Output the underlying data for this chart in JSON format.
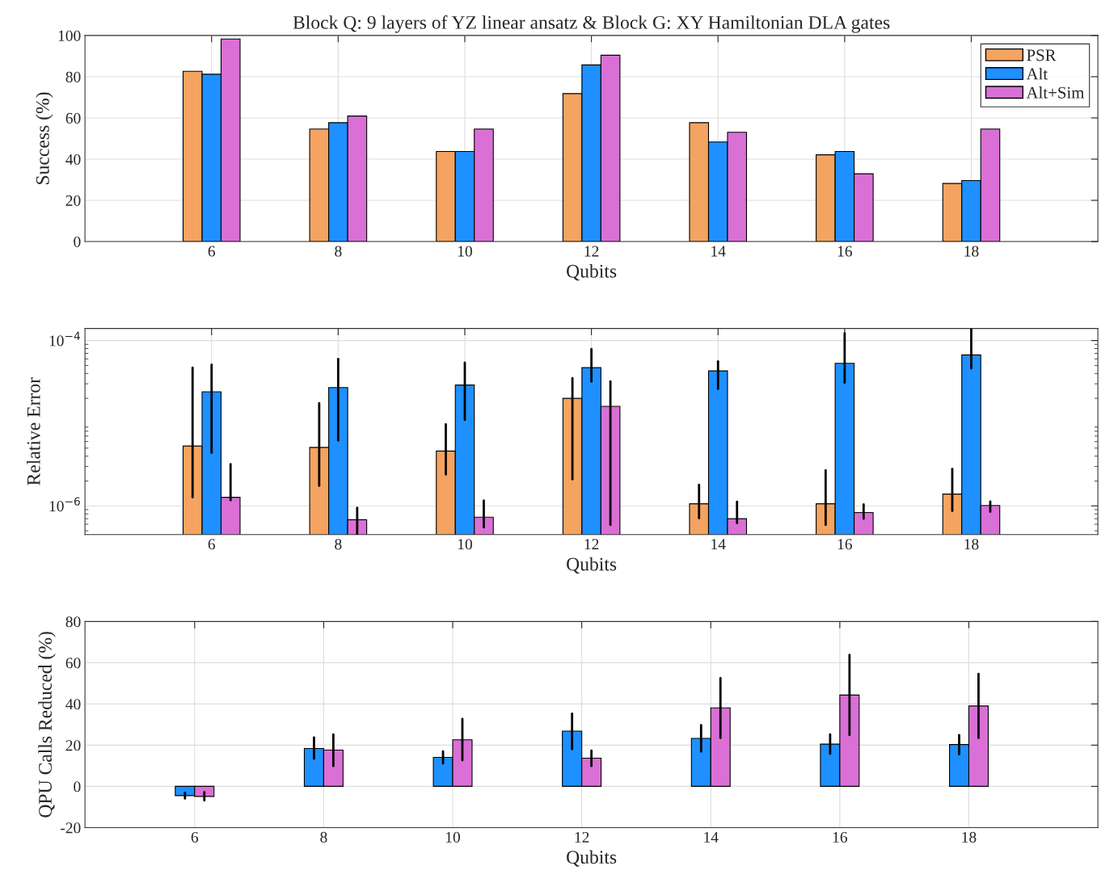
{
  "chart_data": [
    {
      "type": "bar",
      "title": "Block Q: 9 layers of YZ linear ansatz & Block G: XY Hamiltonian DLA gates",
      "xlabel": "Qubits",
      "ylabel": "Success (%)",
      "x": [
        6,
        8,
        10,
        12,
        14,
        16,
        18
      ],
      "xlim": [
        4,
        20
      ],
      "xticks": [
        6,
        8,
        10,
        12,
        14,
        16,
        18
      ],
      "ylim": [
        0,
        100
      ],
      "yticks": [
        0,
        20,
        40,
        60,
        80,
        100
      ],
      "grid": true,
      "legend": "top right",
      "series": [
        {
          "name": "PSR",
          "color": "#f4a460",
          "values": [
            82.6,
            54.6,
            43.7,
            71.8,
            57.7,
            42.1,
            28.2
          ]
        },
        {
          "name": "Alt",
          "color": "#1e90ff",
          "values": [
            81.2,
            57.7,
            43.7,
            85.7,
            48.3,
            43.7,
            29.6
          ]
        },
        {
          "name": "Alt+Sim",
          "color": "#da70d6",
          "values": [
            98.3,
            60.9,
            54.6,
            90.4,
            53.0,
            32.9,
            54.6
          ]
        }
      ]
    },
    {
      "type": "bar",
      "xlabel": "Qubits",
      "ylabel": "Relative Error",
      "x": [
        6,
        8,
        10,
        12,
        14,
        16,
        18
      ],
      "xlim": [
        4,
        20
      ],
      "xticks": [
        6,
        8,
        10,
        12,
        14,
        16,
        18
      ],
      "ylim": [
        4.5e-07,
        0.00014
      ],
      "yticks": [
        {
          "value": 1e-06,
          "label": "10$^{−6}$"
        },
        {
          "value": 0.0001,
          "label": "10$^{−4}$"
        }
      ],
      "log": "y",
      "grid": true,
      "series": [
        {
          "color": "#f4a460",
          "values": [
            5.3e-06,
            5.1e-06,
            4.6e-06,
            2e-05,
            1.06e-06,
            1.06e-06,
            1.39e-06
          ],
          "errors": [
            [
              1.27e-06,
              4.7e-05
            ],
            [
              1.75e-06,
              1.75e-05
            ],
            [
              2.4e-06,
              9.7e-06
            ],
            [
              2.1e-06,
              3.5e-05
            ],
            [
              7.1e-07,
              1.8e-06
            ],
            [
              5.9e-07,
              2.7e-06
            ],
            [
              8.7e-07,
              2.8e-06
            ]
          ]
        },
        {
          "color": "#1e90ff",
          "values": [
            2.4e-05,
            2.7e-05,
            2.9e-05,
            4.7e-05,
            4.3e-05,
            5.3e-05,
            6.7e-05
          ],
          "errors": [
            [
              4.4e-06,
              5.1e-05
            ],
            [
              6.2e-06,
              6e-05
            ],
            [
              1.1e-05,
              5.4e-05
            ],
            [
              3.2e-05,
              7.9e-05
            ],
            [
              2.6e-05,
              5.6e-05
            ],
            [
              3.1e-05,
              0.000122
            ],
            [
              4.6e-05,
              0.00014
            ]
          ]
        },
        {
          "color": "#da70d6",
          "values": [
            1.27e-06,
            6.8e-07,
            7.3e-07,
            1.6e-05,
            7e-07,
            8.3e-07,
            1.01e-06
          ],
          "errors": [
            [
              1.17e-06,
              3.2e-06
            ],
            [
              4.5e-07,
              9.5e-07
            ],
            [
              5.5e-07,
              1.16e-06
            ],
            [
              5.9e-07,
              3.2e-05
            ],
            [
              6.2e-07,
              1.12e-06
            ],
            [
              7e-07,
              1.04e-06
            ],
            [
              8.5e-07,
              1.13e-06
            ]
          ]
        }
      ]
    },
    {
      "type": "bar",
      "xlabel": "Qubits",
      "ylabel": "QPU Calls Reduced (%)",
      "x": [
        6,
        8,
        10,
        12,
        14,
        16,
        18
      ],
      "xlim": [
        4.3,
        20
      ],
      "xticks": [
        6,
        8,
        10,
        12,
        14,
        16,
        18
      ],
      "ylim": [
        -20,
        80
      ],
      "yticks": [
        -20,
        0,
        20,
        40,
        60,
        80
      ],
      "grid": true,
      "series": [
        {
          "color": "#1e90ff",
          "values": [
            -4.5,
            18.4,
            14.1,
            26.8,
            23.3,
            20.5,
            20.3
          ],
          "errors": [
            [
              -5.9,
              -3.1
            ],
            [
              13.4,
              23.7
            ],
            [
              11.1,
              17.0
            ],
            [
              18.1,
              35.3
            ],
            [
              16.9,
              29.7
            ],
            [
              15.8,
              25.2
            ],
            [
              15.5,
              24.9
            ]
          ]
        },
        {
          "color": "#da70d6",
          "values": [
            -4.9,
            17.6,
            22.6,
            13.7,
            38.1,
            44.3,
            39.0
          ],
          "errors": [
            [
              -6.8,
              -2.8
            ],
            [
              9.9,
              25.2
            ],
            [
              12.7,
              32.7
            ],
            [
              9.9,
              17.4
            ],
            [
              23.5,
              52.5
            ],
            [
              24.9,
              63.8
            ],
            [
              23.5,
              54.6
            ]
          ]
        }
      ]
    }
  ]
}
